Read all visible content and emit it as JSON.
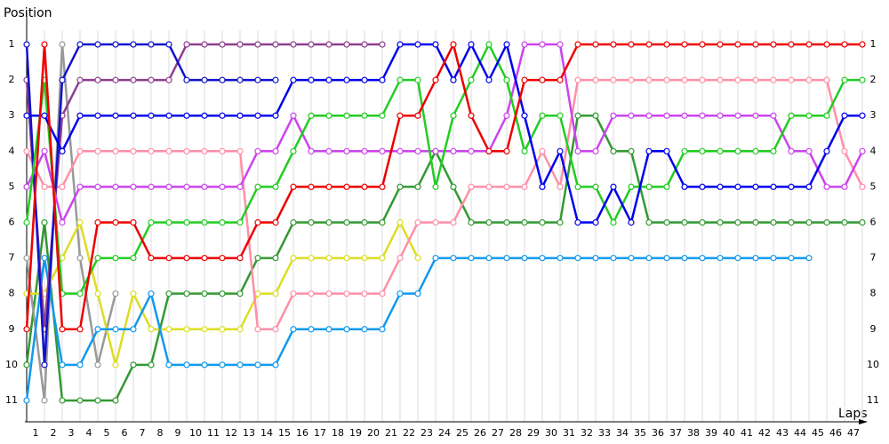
{
  "chart_data": {
    "type": "line",
    "y_label": "Position",
    "x_label": "Laps",
    "x": [
      0,
      1,
      2,
      3,
      4,
      5,
      6,
      7,
      8,
      9,
      10,
      11,
      12,
      13,
      14,
      15,
      16,
      17,
      18,
      19,
      20,
      21,
      22,
      23,
      24,
      25,
      26,
      27,
      28,
      29,
      30,
      31,
      32,
      33,
      34,
      35,
      36,
      37,
      38,
      39,
      40,
      41,
      42,
      43,
      44,
      45,
      46,
      47
    ],
    "xlim": [
      0,
      47.25
    ],
    "xticks": [
      1,
      2,
      3,
      4,
      5,
      6,
      7,
      8,
      9,
      10,
      11,
      12,
      13,
      14,
      15,
      16,
      17,
      18,
      19,
      20,
      21,
      22,
      23,
      24,
      25,
      26,
      27,
      28,
      29,
      30,
      31,
      32,
      33,
      34,
      35,
      36,
      37,
      38,
      39,
      40,
      41,
      42,
      43,
      44,
      45,
      46,
      47
    ],
    "ylim": [
      11.6,
      0.6
    ],
    "yticks": [
      1,
      2,
      3,
      4,
      5,
      6,
      7,
      8,
      9,
      10,
      11
    ],
    "grid": true,
    "series": [
      {
        "color": "#339933",
        "values": [
          10,
          6,
          11,
          11,
          11,
          11,
          10,
          10,
          8,
          8,
          8,
          8,
          8,
          7,
          7,
          6,
          6,
          6,
          6,
          6,
          6,
          5,
          5,
          4,
          5,
          6,
          6,
          6,
          6,
          6,
          6,
          3,
          3,
          4,
          4,
          6,
          6,
          6,
          6,
          6,
          6,
          6,
          6,
          6,
          6,
          6,
          6,
          6
        ]
      },
      {
        "color": "#999999",
        "values": [
          7,
          11,
          1,
          7,
          10,
          8,
          null,
          null,
          null,
          null,
          null,
          null,
          null,
          null,
          null,
          null,
          null,
          null,
          null,
          null,
          null,
          null,
          null,
          null,
          null,
          null,
          null,
          null,
          null,
          null,
          null,
          null,
          null,
          null,
          null,
          null,
          null,
          null,
          null,
          null,
          null,
          null,
          null,
          null,
          null,
          null,
          null,
          null
        ]
      },
      {
        "color": "#dddd22",
        "values": [
          8,
          8,
          7,
          6,
          8,
          10,
          8,
          9,
          9,
          9,
          9,
          9,
          9,
          8,
          8,
          7,
          7,
          7,
          7,
          7,
          7,
          6,
          7,
          null,
          null,
          null,
          null,
          null,
          null,
          null,
          null,
          null,
          null,
          null,
          null,
          null,
          null,
          null,
          null,
          null,
          null,
          null,
          null,
          null,
          null,
          null,
          null,
          null
        ]
      },
      {
        "color": "#1199ee",
        "values": [
          11,
          7,
          10,
          10,
          9,
          9,
          9,
          8,
          10,
          10,
          10,
          10,
          10,
          10,
          10,
          9,
          9,
          9,
          9,
          9,
          9,
          8,
          8,
          7,
          7,
          7,
          7,
          7,
          7,
          7,
          7,
          7,
          7,
          7,
          7,
          7,
          7,
          7,
          7,
          7,
          7,
          7,
          7,
          7,
          7,
          null,
          null,
          null
        ]
      },
      {
        "color": "#ff8fa8",
        "values": [
          4,
          5,
          5,
          4,
          4,
          4,
          4,
          4,
          4,
          4,
          4,
          4,
          4,
          9,
          9,
          8,
          8,
          8,
          8,
          8,
          8,
          7,
          6,
          6,
          6,
          5,
          5,
          5,
          5,
          4,
          5,
          2,
          2,
          2,
          2,
          2,
          2,
          2,
          2,
          2,
          2,
          2,
          2,
          2,
          2,
          2,
          4,
          5
        ]
      },
      {
        "color": "#8e3d8e",
        "values": [
          2,
          9,
          3,
          2,
          2,
          2,
          2,
          2,
          2,
          1,
          1,
          1,
          1,
          1,
          1,
          1,
          1,
          1,
          1,
          1,
          1,
          null,
          null,
          null,
          null,
          null,
          null,
          null,
          null,
          null,
          null,
          null,
          null,
          null,
          null,
          null,
          null,
          null,
          null,
          null,
          null,
          null,
          null,
          null,
          null,
          null,
          null,
          null
        ]
      },
      {
        "color": "#1111cc",
        "values": [
          1,
          10,
          2,
          1,
          1,
          1,
          1,
          1,
          1,
          2,
          2,
          2,
          2,
          2,
          2,
          null,
          null,
          null,
          null,
          null,
          null,
          null,
          null,
          null,
          null,
          null,
          null,
          null,
          null,
          null,
          null,
          null,
          null,
          null,
          null,
          null,
          null,
          null,
          null,
          null,
          null,
          null,
          null,
          null,
          null,
          null,
          null,
          null
        ]
      },
      {
        "color": "#cc44ee",
        "values": [
          5,
          4,
          6,
          5,
          5,
          5,
          5,
          5,
          5,
          5,
          5,
          5,
          5,
          4,
          4,
          3,
          4,
          4,
          4,
          4,
          4,
          4,
          4,
          4,
          4,
          4,
          4,
          3,
          1,
          1,
          1,
          4,
          4,
          3,
          3,
          3,
          3,
          3,
          3,
          3,
          3,
          3,
          3,
          4,
          4,
          5,
          5,
          4
        ]
      },
      {
        "color": "#22cc22",
        "values": [
          6,
          2,
          8,
          8,
          7,
          7,
          7,
          6,
          6,
          6,
          6,
          6,
          6,
          5,
          5,
          4,
          3,
          3,
          3,
          3,
          3,
          2,
          2,
          5,
          3,
          2,
          1,
          2,
          4,
          3,
          3,
          5,
          5,
          6,
          5,
          5,
          5,
          4,
          4,
          4,
          4,
          4,
          4,
          3,
          3,
          3,
          2,
          2
        ]
      },
      {
        "color": "#0000ee",
        "values": [
          3,
          3,
          4,
          3,
          3,
          3,
          3,
          3,
          3,
          3,
          3,
          3,
          3,
          3,
          3,
          2,
          2,
          2,
          2,
          2,
          2,
          1,
          1,
          1,
          2,
          1,
          2,
          1,
          3,
          5,
          4,
          6,
          6,
          5,
          6,
          4,
          4,
          5,
          5,
          5,
          5,
          5,
          5,
          5,
          5,
          4,
          3,
          3
        ]
      },
      {
        "color": "#ee0000",
        "values": [
          9,
          1,
          9,
          9,
          6,
          6,
          6,
          7,
          7,
          7,
          7,
          7,
          7,
          6,
          6,
          5,
          5,
          5,
          5,
          5,
          5,
          3,
          3,
          2,
          1,
          3,
          4,
          4,
          2,
          2,
          2,
          1,
          1,
          1,
          1,
          1,
          1,
          1,
          1,
          1,
          1,
          1,
          1,
          1,
          1,
          1,
          1,
          1
        ]
      }
    ]
  }
}
